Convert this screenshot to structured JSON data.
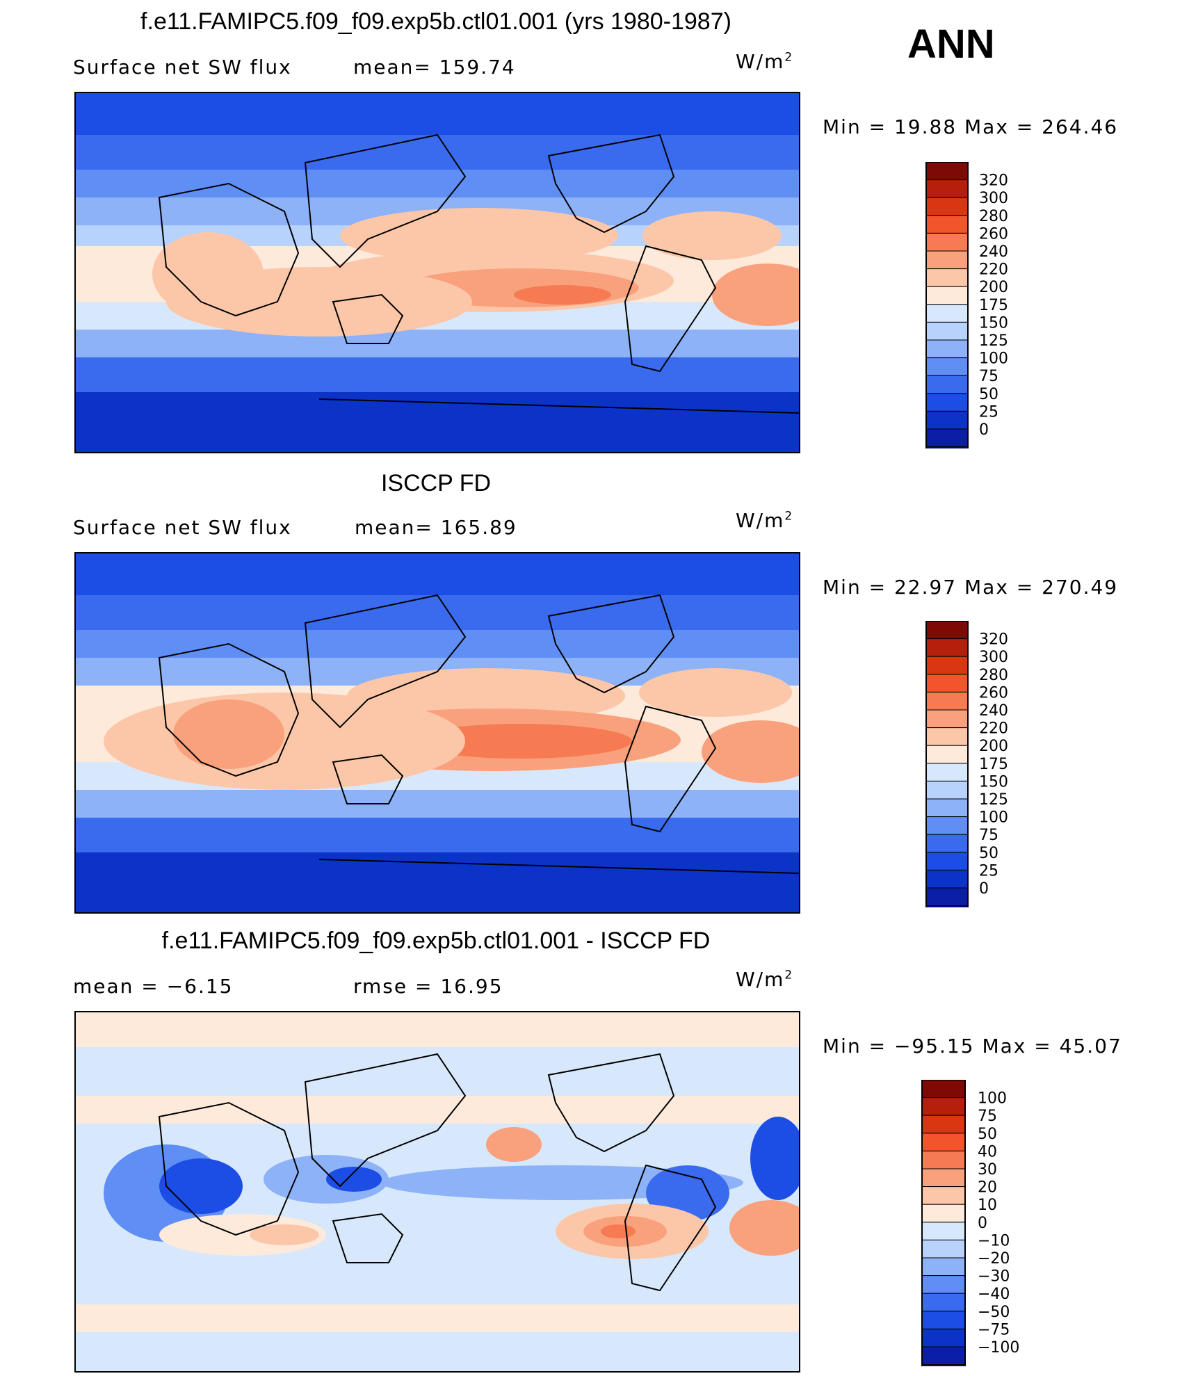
{
  "season": "ANN",
  "palette_abs": [
    "#000c7d",
    "#0a1fa6",
    "#0b33c8",
    "#1c4ee6",
    "#3a6bee",
    "#5f8ef4",
    "#8db2f8",
    "#b7d2fb",
    "#d8e8fc",
    "#fdeadb",
    "#fcc7a8",
    "#f9a17c",
    "#f67b52",
    "#f2552c",
    "#d93614",
    "#b51f0b",
    "#7f0a04"
  ],
  "palette_diff": [
    "#000c7d",
    "#0a1fa6",
    "#0b33c8",
    "#1c4ee6",
    "#3a6bee",
    "#5f8ef4",
    "#8db2f8",
    "#b7d2fb",
    "#d8e8fc",
    "#fdeadb",
    "#fcc7a8",
    "#f9a17c",
    "#f67b52",
    "#f2552c",
    "#d93614",
    "#b51f0b",
    "#7f0a04"
  ],
  "chart_data": [
    {
      "type": "heatmap",
      "title": "f.e11.FAMIPC5.f09_f09.exp5b.ctl01.001 (yrs 1980-1987)",
      "variable": "Surface net SW flux",
      "mean_label": "mean= 159.74",
      "mean": 159.74,
      "units": "W/m",
      "units_sup": "2",
      "min_max_label": "Min =   19.88 Max = 264.46",
      "min": 19.88,
      "max": 264.46,
      "colorbar_levels": [
        "320",
        "300",
        "280",
        "260",
        "240",
        "220",
        "200",
        "175",
        "150",
        "125",
        "100",
        "75",
        "50",
        "25",
        "0"
      ]
    },
    {
      "type": "heatmap",
      "title": "ISCCP FD",
      "variable": "Surface net SW flux",
      "mean_label": "mean= 165.89",
      "mean": 165.89,
      "units": "W/m",
      "units_sup": "2",
      "min_max_label": "Min =   22.97 Max = 270.49",
      "min": 22.97,
      "max": 270.49,
      "colorbar_levels": [
        "320",
        "300",
        "280",
        "260",
        "240",
        "220",
        "200",
        "175",
        "150",
        "125",
        "100",
        "75",
        "50",
        "25",
        "0"
      ]
    },
    {
      "type": "heatmap",
      "title": "f.e11.FAMIPC5.f09_f09.exp5b.ctl01.001 - ISCCP FD",
      "mean_label": "mean =   −6.15",
      "mean": -6.15,
      "rmse_label": "rmse =    16.95",
      "rmse": 16.95,
      "units": "W/m",
      "units_sup": "2",
      "min_max_label": "Min = −95.15 Max =   45.07",
      "min": -95.15,
      "max": 45.07,
      "colorbar_levels": [
        "100",
        "75",
        "50",
        "40",
        "30",
        "20",
        "10",
        "0",
        "−10",
        "−20",
        "−30",
        "−40",
        "−50",
        "−75",
        "−100"
      ]
    }
  ]
}
